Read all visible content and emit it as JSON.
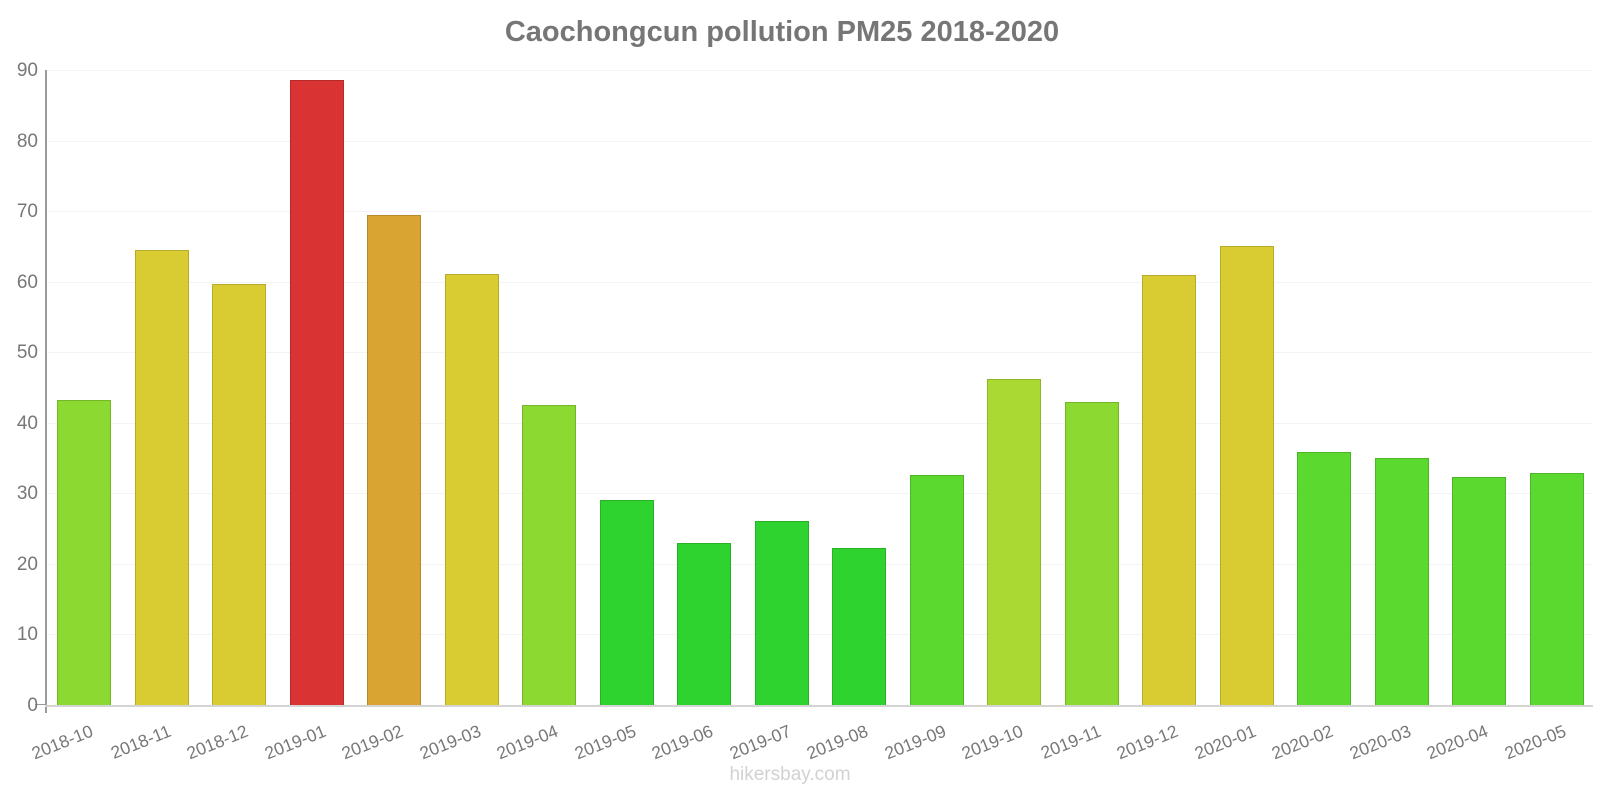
{
  "page": {
    "title": "Caochongcun pollution PM25 2018-2020",
    "watermark": "hikersbay.com"
  },
  "chart_data": {
    "type": "bar",
    "title": "Caochongcun pollution PM25 2018-2020",
    "xlabel": "",
    "ylabel": "",
    "ylim": [
      0,
      90
    ],
    "yticks": [
      0,
      10,
      20,
      30,
      40,
      50,
      60,
      70,
      80,
      90
    ],
    "grid": true,
    "legend": false,
    "categories": [
      "2018-10",
      "2018-11",
      "2018-12",
      "2019-01",
      "2019-02",
      "2019-03",
      "2019-04",
      "2019-05",
      "2019-06",
      "2019-07",
      "2019-08",
      "2019-09",
      "2019-10",
      "2019-11",
      "2019-12",
      "2020-01",
      "2020-02",
      "2020-03",
      "2020-04",
      "2020-05"
    ],
    "values": [
      43.2,
      64.5,
      59.7,
      88.6,
      69.5,
      61.1,
      42.5,
      29.0,
      23.0,
      26.1,
      22.2,
      32.6,
      46.2,
      43.0,
      60.9,
      65.0,
      35.9,
      35.0,
      32.3,
      32.9
    ],
    "bar_colors": [
      "#8CD932",
      "#D9CC33",
      "#D9CC33",
      "#D93333",
      "#D9A432",
      "#D9CC33",
      "#8CD932",
      "#2FD32F",
      "#2FD32F",
      "#2FD32F",
      "#2FD32F",
      "#5CD92E",
      "#A9D932",
      "#8CD932",
      "#D9CC33",
      "#D9CC33",
      "#5CD92E",
      "#5CD92E",
      "#5CD92E",
      "#5CD92E"
    ]
  },
  "style": {
    "title_color": "#767676",
    "label_color": "#777777",
    "axis_color": "#9b9b9b",
    "baseline_color": "#d4d4d4",
    "grid_color": "#f3f3f3",
    "watermark_color": "#d2d2d2"
  }
}
